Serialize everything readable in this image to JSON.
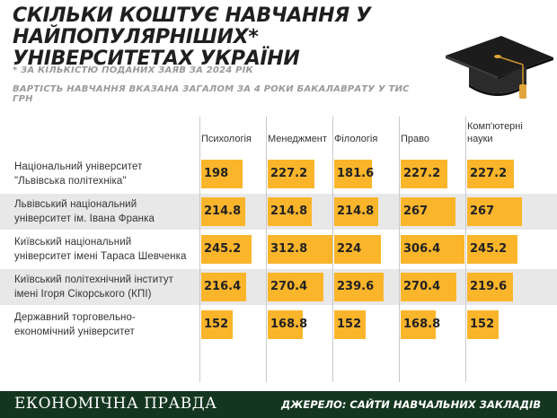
{
  "header": {
    "title": "Скільки коштує навчання у найпопулярніших* університетах України",
    "note": "* за кількістю поданих заяв за 2024 рік",
    "subtitle": "Вартість навчання вказана загалом за 4 роки бакалаврату у тис грн"
  },
  "icons": {
    "graduation_cap": "graduation-cap-icon"
  },
  "colors": {
    "bar": "#fbb52b",
    "footer": "#14361f",
    "row_stripe": "#e8e8e8"
  },
  "chart_data": {
    "type": "bar",
    "title": "Скільки коштує навчання у найпопулярніших* університетах України",
    "unit": "тис грн",
    "columns": [
      "Психологія",
      "Менеджмент",
      "Філологія",
      "Право",
      "Комп'ютерні науки"
    ],
    "rows": [
      {
        "name": "Національний університет \"Львівська політехніка\"",
        "label_lines": [
          "Національний університет",
          "\"Львівська політехніка\""
        ],
        "values": [
          198,
          227.2,
          181.6,
          227.2,
          227.2
        ],
        "labels": [
          "198",
          "227.2",
          "181.6",
          "227.2",
          "227.2"
        ]
      },
      {
        "name": "Львівський національний університет ім. Івана Франка",
        "label_lines": [
          "Львівський національний",
          "університет ім. Івана Франка"
        ],
        "values": [
          214.8,
          214.8,
          214.8,
          267,
          267
        ],
        "labels": [
          "214.8",
          "214.8",
          "214.8",
          "267",
          "267"
        ]
      },
      {
        "name": "Київський національний університет імені Тараса Шевченка",
        "label_lines": [
          "Київський національний",
          "університет імені Тараса Шевченка"
        ],
        "values": [
          245.2,
          312.8,
          224,
          306.4,
          245.2
        ],
        "labels": [
          "245.2",
          "312.8",
          "224",
          "306.4",
          "245.2"
        ]
      },
      {
        "name": "Київський політехнічний інститут імені Ігоря Сікорського (КПІ)",
        "label_lines": [
          "Київський політехнічний інститут",
          "імені Ігоря Сікорського (КПІ)"
        ],
        "values": [
          216.4,
          270.4,
          239.6,
          270.4,
          219.6
        ],
        "labels": [
          "216.4",
          "270.4",
          "239.6",
          "270.4",
          "219.6"
        ]
      },
      {
        "name": "Державний торговельно-економічний університет",
        "label_lines": [
          "Державний торговельно-",
          "економічний університет"
        ],
        "values": [
          152,
          168.8,
          152,
          168.8,
          152
        ],
        "labels": [
          "152",
          "168.8",
          "152",
          "168.8",
          "152"
        ]
      }
    ]
  },
  "footer": {
    "brand": "Економічна правда",
    "source": "Джерело: сайти навчальних закладів"
  }
}
